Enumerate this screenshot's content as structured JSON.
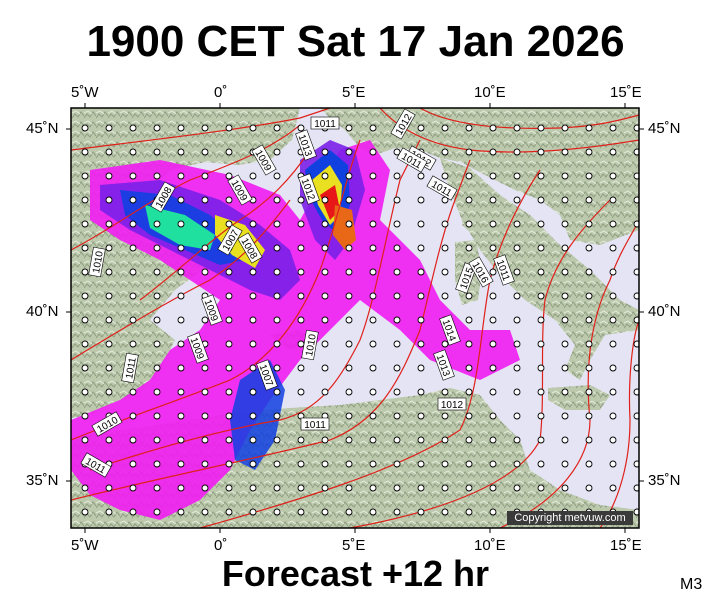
{
  "title": "1900 CET Sat 17 Jan 2026",
  "footer": "Forecast +12 hr",
  "model_code": "M3",
  "copyright": "Copyright metvuw.com",
  "axes": {
    "lon_labels": [
      "5˚W",
      "0˚",
      "5˚E",
      "10˚E",
      "15˚E"
    ],
    "lat_labels": [
      "45˚N",
      "40˚N",
      "35˚N"
    ]
  },
  "isobar_labels": [
    "1011",
    "1012",
    "1012",
    "1009",
    "1013",
    "1009",
    "1008",
    "1012",
    "1007",
    "1008",
    "1010",
    "1009",
    "1011",
    "1011",
    "1015",
    "1016",
    "1011",
    "1014",
    "1013",
    "1010",
    "1009",
    "1007",
    "1012",
    "1011",
    "1011",
    "1010",
    "1011"
  ],
  "colors": {
    "isobar": "#e0201a",
    "sea": "#e4e4f4",
    "land": "#bcc9ad",
    "rain_light": "#f020f0",
    "rain_mid": "#7a20e8",
    "rain_heavy": "#1040e0",
    "rain_max": "#20e0a0"
  }
}
